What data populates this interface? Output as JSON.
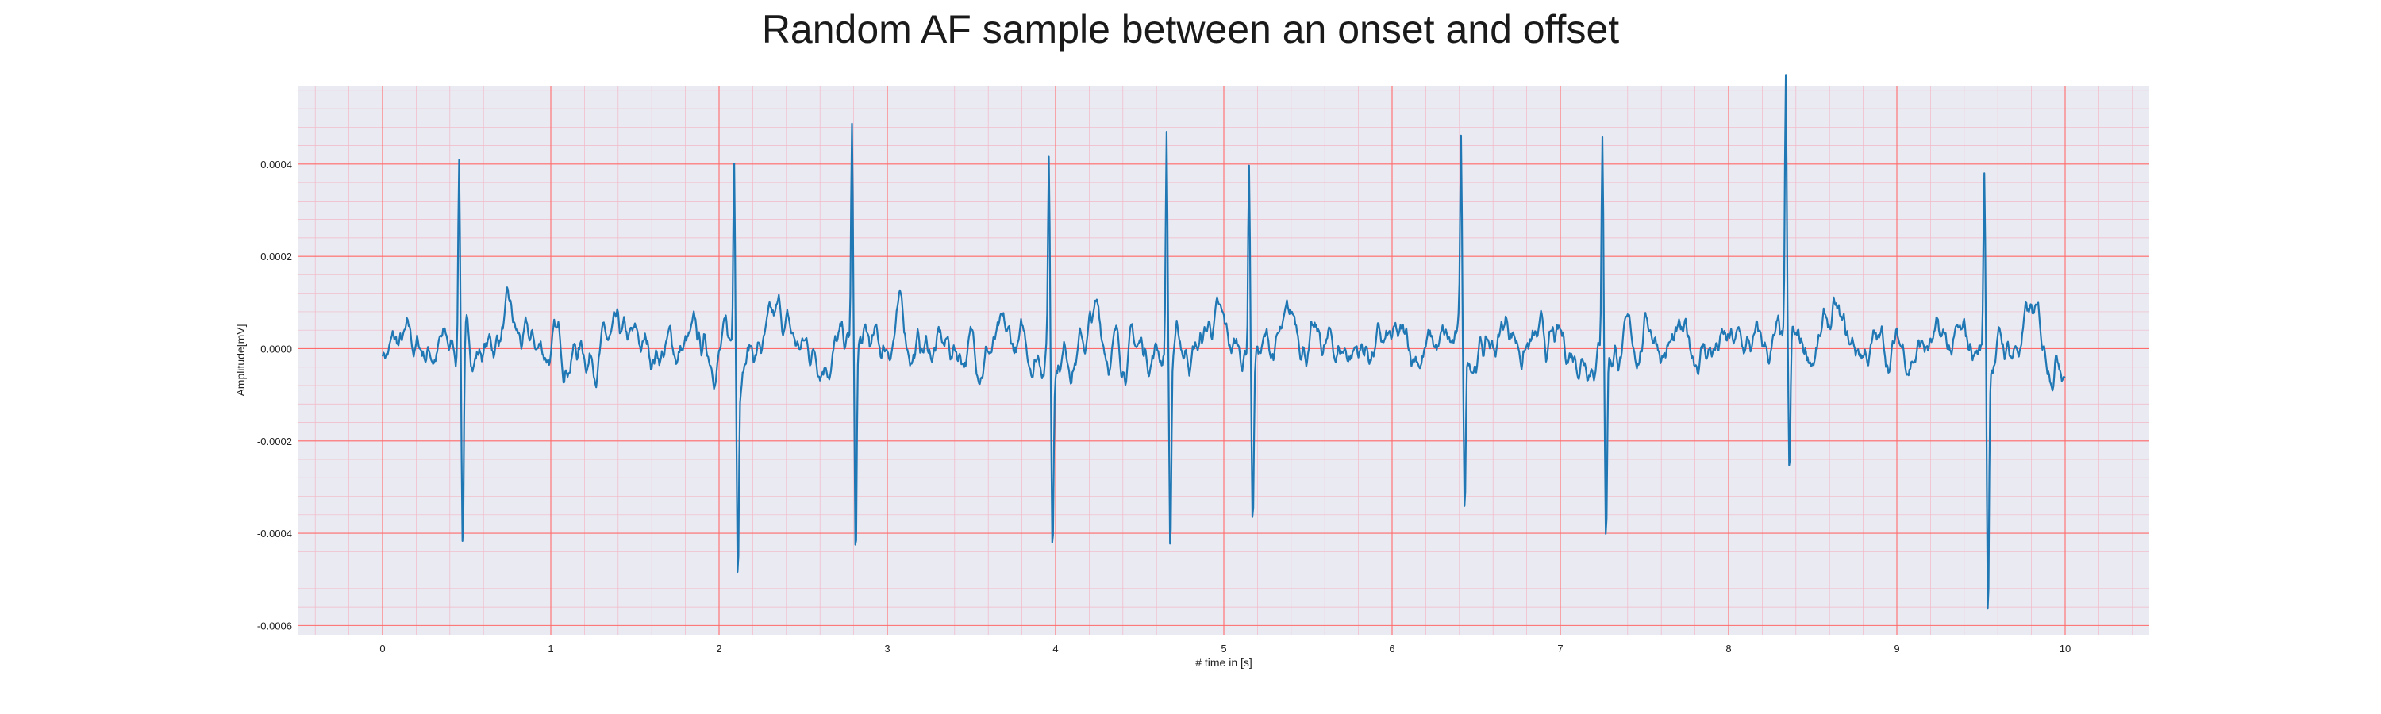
{
  "chart_data": {
    "type": "line",
    "title": "Random AF sample between an onset and offset",
    "xlabel": "# time in [s]",
    "ylabel": "Amplitude[mV]",
    "xlim": [
      -0.5,
      10.5
    ],
    "ylim": [
      -0.00062,
      0.00057
    ],
    "xticks": [
      0,
      1,
      2,
      3,
      4,
      5,
      6,
      7,
      8,
      9,
      10
    ],
    "xtick_labels": [
      "0",
      "1",
      "2",
      "3",
      "4",
      "5",
      "6",
      "7",
      "8",
      "9",
      "10"
    ],
    "yticks": [
      -0.0006,
      -0.0004,
      -0.0002,
      0.0,
      0.0002,
      0.0004
    ],
    "ytick_labels": [
      "-0.0006",
      "-0.0004",
      "-0.0002",
      "0.0000",
      "0.0002",
      "0.0004"
    ],
    "grid": true,
    "minor_grid": true,
    "colors": {
      "line": "#1f77b4",
      "plot_background": "#eaeaf2",
      "major_grid": "#ff6b6b",
      "minor_grid": "#f2b8c6"
    },
    "r_peaks": [
      {
        "t": 0.455,
        "peak": 0.00044,
        "trough": -0.00042
      },
      {
        "t": 2.09,
        "peak": 0.00043,
        "trough": -0.00044
      },
      {
        "t": 2.79,
        "peak": 0.00047,
        "trough": -0.00049
      },
      {
        "t": 3.96,
        "peak": 0.00042,
        "trough": -0.00042
      },
      {
        "t": 4.66,
        "peak": 0.00048,
        "trough": -0.00044
      },
      {
        "t": 5.15,
        "peak": 0.00042,
        "trough": -0.00037
      },
      {
        "t": 6.41,
        "peak": 0.00045,
        "trough": -0.00036
      },
      {
        "t": 7.25,
        "peak": 0.0005,
        "trough": -0.0004
      },
      {
        "t": 8.34,
        "peak": 0.00052,
        "trough": -0.00032
      },
      {
        "t": 9.52,
        "peak": 0.00038,
        "trough": -0.00057
      }
    ],
    "baseline_noise_amplitude": 3e-05
  }
}
